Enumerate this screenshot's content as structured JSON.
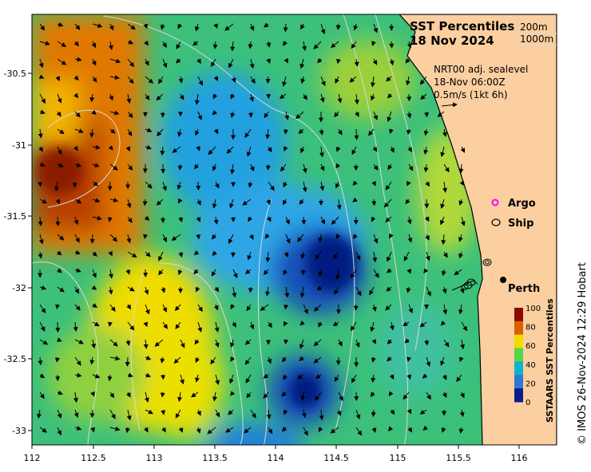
{
  "title": {
    "line1": "SST Percentiles",
    "line2": "18 Nov 2024"
  },
  "isobath_legend": [
    "200m",
    "1000m"
  ],
  "current_info": {
    "line1": "NRT00 adj. sealevel",
    "line2": "18-Nov 06:00Z",
    "line3": "0.5m/s (1kt 6h)"
  },
  "legend_markers": [
    {
      "label": "Argo",
      "symbol": "magenta-circle-icon",
      "color": "#ff00ff"
    },
    {
      "label": "Ship",
      "symbol": "black-ring-icon",
      "color": "#000000"
    }
  ],
  "place_label": "Perth",
  "colorbar": {
    "title": "SSTAARS SST Percentiles",
    "ticks": [
      "100",
      "80",
      "60",
      "40",
      "20",
      "0"
    ],
    "colors": [
      "#8b0a00",
      "#d95f00",
      "#f0dc00",
      "#58d44a",
      "#10b4c8",
      "#2a7ad6",
      "#0a1c8c"
    ]
  },
  "credit": "© IMOS 26-Nov-2024 12:29 Hobart",
  "x_ticks": [
    "112",
    "112.5",
    "113",
    "113.5",
    "114",
    "114.5",
    "115",
    "115.5",
    "116"
  ],
  "y_ticks": [
    "-30.5",
    "-31",
    "-31.5",
    "-32",
    "-32.5",
    "-33"
  ],
  "colors": {
    "land": "#fbcfa0",
    "coast": "#000000",
    "isobath": "#d8d8d8",
    "arrow": "#000000"
  }
}
